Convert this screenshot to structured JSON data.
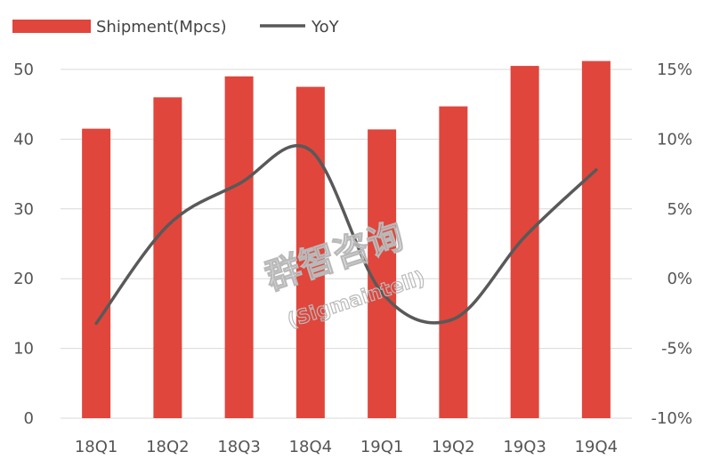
{
  "chart_data": {
    "type": "bar+line",
    "categories": [
      "18Q1",
      "18Q2",
      "18Q3",
      "18Q4",
      "19Q1",
      "19Q2",
      "19Q3",
      "19Q4"
    ],
    "series": [
      {
        "name": "Shipment(Mpcs)",
        "type": "bar",
        "axis": "left",
        "color": "#e0463c",
        "values": [
          41.5,
          46.0,
          49.0,
          47.5,
          41.4,
          44.7,
          50.5,
          51.2
        ]
      },
      {
        "name": "YoY",
        "type": "line",
        "axis": "right",
        "color": "#595959",
        "values": [
          -3.2,
          3.8,
          6.8,
          9.2,
          -1.0,
          -2.9,
          3.0,
          7.8
        ]
      }
    ],
    "left_axis": {
      "min": 0,
      "max": 50,
      "step": 10,
      "labels": [
        "0",
        "10",
        "20",
        "30",
        "40",
        "50"
      ]
    },
    "right_axis": {
      "min": -10,
      "max": 15,
      "step": 5,
      "labels": [
        "-10%",
        "-5%",
        "0%",
        "5%",
        "10%",
        "15%"
      ]
    },
    "grid": true,
    "legend_position": "top-left"
  },
  "watermark": {
    "line1": "群智咨询",
    "line2": "(Sigmaintell)"
  }
}
